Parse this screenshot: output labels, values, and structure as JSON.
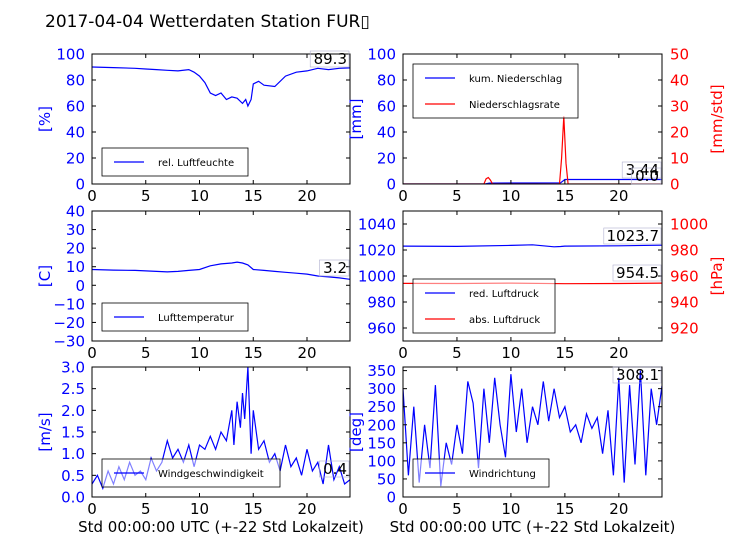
{
  "title": "2017-04-04 Wetterdaten Station FUR▯",
  "colors": {
    "primary": "#0000ff",
    "secondary": "#ff0000",
    "text": "#000000"
  },
  "chart_data": [
    {
      "id": "humidity",
      "type": "line",
      "ylabel": "[%]",
      "xlim": [
        0,
        24
      ],
      "ylim": [
        0,
        100
      ],
      "xticks": [
        0,
        5,
        10,
        15,
        20
      ],
      "yticks": [
        0,
        20,
        40,
        60,
        80,
        100
      ],
      "last_value_label": "89.3",
      "legend_position": "lower-left",
      "series": [
        {
          "name": "rel. Luftfeuchte",
          "color": "#0000ff",
          "x": [
            0,
            2,
            4,
            5,
            6,
            7,
            8,
            9,
            9.5,
            10,
            10.5,
            11,
            11.5,
            12,
            12.5,
            13,
            13.5,
            14,
            14.3,
            14.5,
            14.8,
            15,
            15.5,
            16,
            17,
            18,
            19,
            20,
            21,
            22,
            23,
            24
          ],
          "y": [
            90,
            89.5,
            89,
            88.5,
            88,
            87.5,
            87,
            88,
            86,
            83,
            78,
            70,
            68,
            70,
            65,
            67,
            66,
            62,
            65,
            60,
            65,
            77,
            79,
            76,
            75,
            83,
            86,
            87,
            89,
            88,
            89,
            89.3
          ]
        }
      ]
    },
    {
      "id": "precip",
      "type": "line",
      "ylabel": "[mm]",
      "ylabel_right": "[mm/std]",
      "xlim": [
        0,
        24
      ],
      "ylim": [
        0,
        100
      ],
      "ylim_right": [
        0,
        50
      ],
      "xticks": [
        0,
        5,
        10,
        15,
        20
      ],
      "yticks": [
        0,
        20,
        40,
        60,
        80,
        100
      ],
      "yticks_right": [
        0,
        10,
        20,
        30,
        40,
        50
      ],
      "last_value_labels": [
        "3.44",
        "0.0"
      ],
      "legend_position": "upper-left",
      "series": [
        {
          "name": "kum. Niederschlag",
          "color": "#0000ff",
          "axis": "left",
          "x": [
            0,
            7.6,
            8.0,
            14.6,
            15.0,
            24
          ],
          "y": [
            0,
            0,
            0.7,
            0.9,
            3.44,
            3.44
          ]
        },
        {
          "name": "Niederschlagsrate",
          "color": "#ff0000",
          "axis": "right",
          "x": [
            0,
            7.5,
            7.7,
            7.9,
            8.1,
            8.3,
            14.5,
            14.7,
            14.9,
            15.1,
            15.3,
            24
          ],
          "y": [
            0,
            0,
            2,
            2.5,
            1.5,
            0,
            0,
            10,
            26,
            8,
            0,
            0
          ]
        }
      ]
    },
    {
      "id": "temperature",
      "type": "line",
      "ylabel": "[C]",
      "xlim": [
        0,
        24
      ],
      "ylim": [
        -30,
        40
      ],
      "xticks": [
        0,
        5,
        10,
        15,
        20
      ],
      "yticks": [
        -30,
        -20,
        -10,
        0,
        10,
        20,
        30,
        40
      ],
      "last_value_label": "3.2",
      "legend_position": "lower-left",
      "series": [
        {
          "name": "Lufttemperatur",
          "color": "#0000ff",
          "x": [
            0,
            2,
            4,
            6,
            7,
            8,
            9,
            10,
            11,
            12,
            13,
            13.5,
            14,
            14.5,
            15,
            16,
            17,
            18,
            19,
            20,
            21,
            22,
            23,
            24
          ],
          "y": [
            8.5,
            8.2,
            8,
            7.5,
            7.2,
            7.5,
            8,
            8.5,
            10.5,
            11.5,
            12,
            12.5,
            12,
            11,
            8.5,
            8,
            7.5,
            7,
            6.5,
            6,
            5,
            4.5,
            4,
            3.2
          ]
        }
      ]
    },
    {
      "id": "pressure",
      "type": "line",
      "ylabel": "",
      "ylabel_right": "[hPa]",
      "xlim": [
        0,
        24
      ],
      "ylim": [
        950,
        1050
      ],
      "ylim_right": [
        910,
        1010
      ],
      "xticks": [
        0,
        5,
        10,
        15,
        20
      ],
      "yticks": [
        960,
        980,
        1000,
        1020,
        1040
      ],
      "yticks_right": [
        920,
        940,
        960,
        980,
        1000
      ],
      "last_value_labels": [
        "1023.7",
        "954.5"
      ],
      "legend_position": "lower-left",
      "series": [
        {
          "name": "red. Luftdruck",
          "color": "#0000ff",
          "axis": "left",
          "x": [
            0,
            5,
            10,
            12,
            14,
            14.6,
            15,
            20,
            24
          ],
          "y": [
            1023,
            1022.8,
            1023.5,
            1024,
            1022.5,
            1022.7,
            1023,
            1023.2,
            1023.7
          ]
        },
        {
          "name": "abs. Luftdruck",
          "color": "#ff0000",
          "axis": "right",
          "x": [
            0,
            5,
            10,
            15,
            20,
            24
          ],
          "y": [
            954.3,
            954.2,
            954.5,
            954.1,
            954.2,
            954.5
          ]
        }
      ]
    },
    {
      "id": "windspeed",
      "type": "line",
      "ylabel": "[m/s]",
      "xlabel": "Std 00:00:00 UTC (+-22 Std Lokalzeit)",
      "xlim": [
        0,
        24
      ],
      "ylim": [
        0,
        3.0
      ],
      "xticks": [
        0,
        5,
        10,
        15,
        20
      ],
      "yticks": [
        0.0,
        0.5,
        1.0,
        1.5,
        2.0,
        2.5,
        3.0
      ],
      "last_value_label": "0.4",
      "legend_position": "lower-left",
      "series": [
        {
          "name": "Windgeschwindigkeit",
          "color": "#0000ff",
          "x": [
            0,
            0.5,
            1,
            1.5,
            2,
            2.5,
            3,
            3.5,
            4,
            4.5,
            5,
            5.5,
            6,
            6.5,
            7,
            7.5,
            8,
            8.5,
            9,
            9.5,
            10,
            10.5,
            11,
            11.5,
            12,
            12.5,
            13,
            13.2,
            13.5,
            13.8,
            14,
            14.2,
            14.5,
            14.8,
            15,
            15.5,
            16,
            16.5,
            17,
            17.5,
            18,
            18.5,
            19,
            19.5,
            20,
            20.5,
            21,
            21.5,
            22,
            22.5,
            23,
            23.5,
            24
          ],
          "y": [
            0.3,
            0.5,
            0.2,
            0.6,
            0.3,
            0.7,
            0.4,
            0.8,
            0.5,
            0.6,
            0.4,
            0.9,
            0.6,
            0.8,
            1.3,
            0.9,
            1.1,
            0.8,
            1.2,
            0.7,
            1.2,
            1.1,
            1.4,
            1.1,
            1.5,
            1.3,
            2.0,
            1.2,
            2.2,
            1.6,
            2.4,
            1.8,
            3.0,
            1.0,
            2.0,
            1.1,
            1.3,
            0.8,
            1.0,
            0.6,
            1.2,
            0.7,
            0.9,
            0.5,
            1.1,
            0.6,
            0.8,
            0.3,
            1.2,
            0.4,
            0.7,
            0.3,
            0.4
          ]
        }
      ]
    },
    {
      "id": "winddir",
      "type": "line",
      "ylabel": "[deg]",
      "xlabel": "Std 00:00:00 UTC (+-22 Std Lokalzeit)",
      "xlim": [
        0,
        24
      ],
      "ylim": [
        0,
        360
      ],
      "xticks": [
        0,
        5,
        10,
        15,
        20
      ],
      "yticks": [
        0,
        50,
        100,
        150,
        200,
        250,
        300,
        350
      ],
      "last_value_label": "308.1",
      "legend_position": "lower-left",
      "series": [
        {
          "name": "Windrichtung",
          "color": "#0000ff",
          "x": [
            0,
            0.5,
            1,
            1.5,
            2,
            2.5,
            3,
            3.5,
            4,
            4.5,
            5,
            5.5,
            6,
            6.5,
            7,
            7.5,
            8,
            8.5,
            9,
            9.5,
            10,
            10.5,
            11,
            11.5,
            12,
            12.5,
            13,
            13.5,
            14,
            14.5,
            15,
            15.5,
            16,
            16.5,
            17,
            17.5,
            18,
            18.5,
            19,
            19.5,
            20,
            20.5,
            21,
            21.5,
            22,
            22.5,
            23,
            23.5,
            24
          ],
          "y": [
            300,
            60,
            250,
            40,
            200,
            80,
            310,
            30,
            150,
            90,
            200,
            120,
            320,
            260,
            80,
            300,
            150,
            330,
            200,
            110,
            340,
            180,
            300,
            150,
            250,
            200,
            320,
            210,
            300,
            220,
            250,
            180,
            200,
            150,
            230,
            190,
            220,
            120,
            240,
            60,
            330,
            40,
            310,
            90,
            350,
            60,
            300,
            200,
            308
          ]
        }
      ]
    }
  ]
}
